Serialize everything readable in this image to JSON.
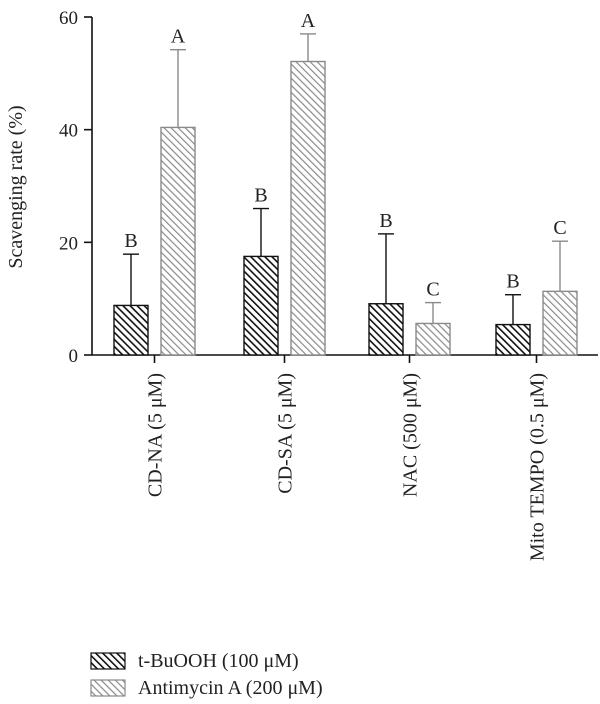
{
  "chart_data": {
    "type": "bar",
    "ylabel": "Scavenging rate (%)",
    "ylim": [
      0,
      60
    ],
    "yticks": [
      "0",
      "20",
      "40",
      "60"
    ],
    "categories": [
      "CD-NA (5 μM)",
      "CD-SA (5 μM)",
      "NAC (500 μM)",
      "Mito TEMPO (0.5 μM)"
    ],
    "series": [
      {
        "name": "t-BuOOH (100 μM)",
        "values": [
          8.8,
          17.5,
          9.1,
          5.4
        ],
        "errors": [
          9.1,
          8.5,
          12.4,
          5.3
        ],
        "significance": [
          "B",
          "B",
          "B",
          "B"
        ],
        "color": "#111111"
      },
      {
        "name": "Antimycin A (200 μM)",
        "values": [
          40.4,
          52.1,
          5.6,
          11.3
        ],
        "errors": [
          13.8,
          4.9,
          3.7,
          8.9
        ],
        "significance": [
          "A",
          "A",
          "C",
          "C"
        ],
        "color": "#8a8a8a"
      }
    ],
    "legend_position": "bottom-left",
    "grid": false
  }
}
